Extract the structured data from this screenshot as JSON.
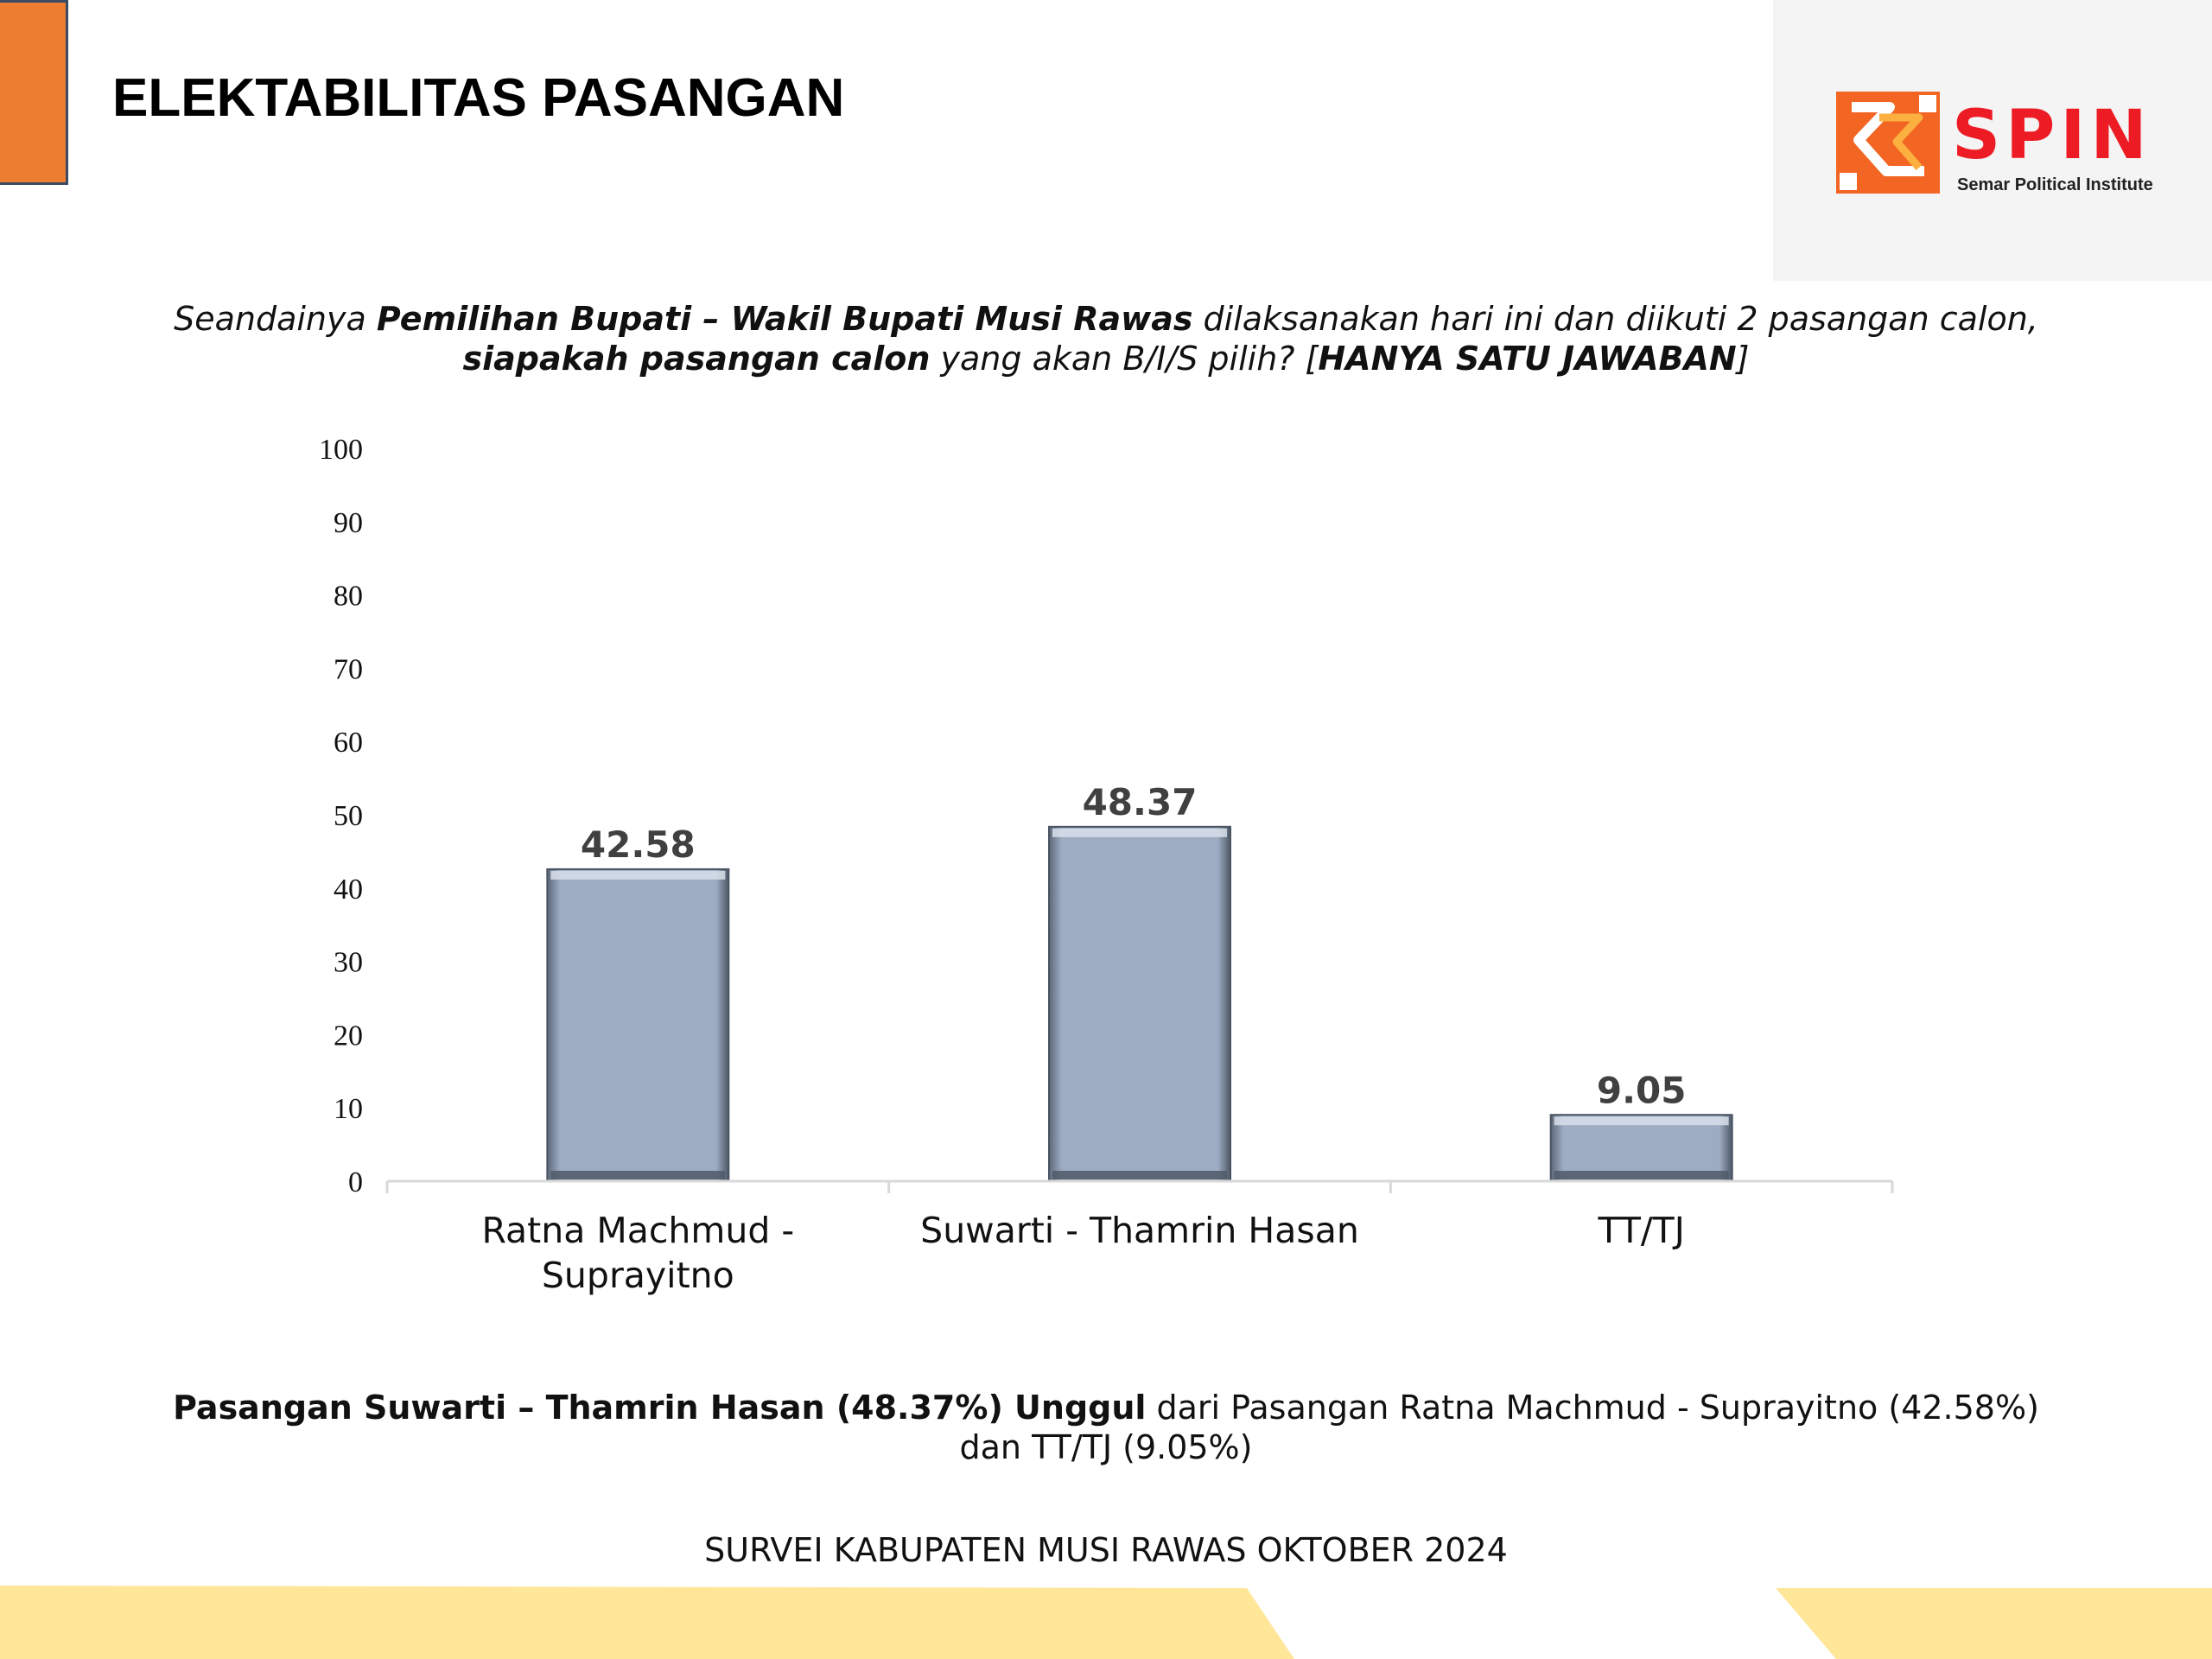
{
  "header": {
    "title": "ELEKTABILITAS PASANGAN",
    "accent_color": "#ED7D31"
  },
  "logo": {
    "wordmark": "SPIN",
    "tagline": "Semar Political Institute",
    "brand_color": "#ED1C24"
  },
  "question": {
    "p1": "Seandainya ",
    "b1": "Pemilihan Bupati – Wakil Bupati Musi Rawas",
    "p2": " dilaksanakan hari ini dan diikuti 2 pasangan calon, ",
    "b2": "siapakah pasangan calon",
    "p3": " yang akan B/I/S pilih? [",
    "b3": "HANYA SATU JAWABAN",
    "p4": "]"
  },
  "chart_data": {
    "type": "bar",
    "categories": [
      "Ratna Machmud - Suprayitno",
      "Suwarti - Thamrin Hasan",
      "TT/TJ"
    ],
    "values": [
      42.58,
      48.37,
      9.05
    ],
    "data_labels": [
      "42.58",
      "48.37",
      "9.05"
    ],
    "title": "",
    "xlabel": "",
    "ylabel": "",
    "ylim": [
      0,
      100
    ],
    "yticks": [
      0,
      10,
      20,
      30,
      40,
      50,
      60,
      70,
      80,
      90,
      100
    ],
    "grid": false,
    "bar_color": "#9DACC3"
  },
  "conclusion": {
    "bold": "Pasangan Suwarti – Thamrin Hasan (48.37%) Unggul",
    "rest": " dari Pasangan Ratna Machmud - Suprayitno (42.58%) dan TT/TJ (9.05%)"
  },
  "footer": {
    "survey": "SURVEI KABUPATEN MUSI RAWAS OKTOBER 2024",
    "band_color": "#FFE699"
  }
}
